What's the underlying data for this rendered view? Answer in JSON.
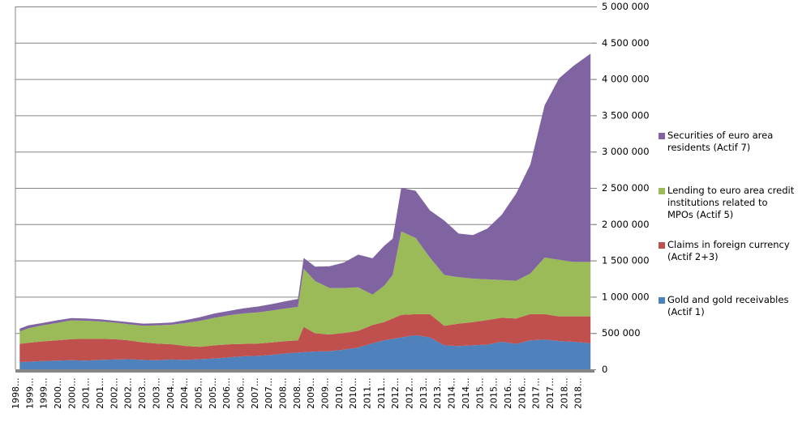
{
  "chart_data": {
    "type": "area",
    "stacked": true,
    "title": "",
    "xlabel": "",
    "ylabel": "",
    "ylim": [
      0,
      5000000
    ],
    "y_ticks": [
      0,
      500000,
      1000000,
      1500000,
      2000000,
      2500000,
      3000000,
      3500000,
      4000000,
      4500000,
      5000000
    ],
    "y_tick_labels": [
      "0",
      "500 000",
      "1 000 000",
      "1 500 000",
      "2 000 000",
      "2 500 000",
      "3 000 000",
      "3 500 000",
      "4 000 000",
      "4 500 000",
      "5 000 000"
    ],
    "y_axis_position": "right",
    "grid": true,
    "legend_position": "right",
    "x_tick_labels": [
      "1998...",
      "1999...",
      "1999...",
      "2000...",
      "2000...",
      "2001...",
      "2001...",
      "2002...",
      "2002...",
      "2003...",
      "2003...",
      "2004...",
      "2004...",
      "2005...",
      "2005...",
      "2006...",
      "2006...",
      "2007...",
      "2007...",
      "2008...",
      "2008...",
      "2009...",
      "2009...",
      "2010...",
      "2010...",
      "2011...",
      "2011...",
      "2012...",
      "2012...",
      "2013...",
      "2013...",
      "2014...",
      "2014...",
      "2015...",
      "2015...",
      "2016...",
      "2016...",
      "2017...",
      "2017...",
      "2018...",
      "2018..."
    ],
    "x": [
      1998.9,
      1999.2,
      1999.7,
      2000.2,
      2000.7,
      2001.2,
      2001.7,
      2002.2,
      2002.7,
      2003.2,
      2003.7,
      2004.2,
      2004.7,
      2005.2,
      2005.7,
      2006.2,
      2006.7,
      2007.2,
      2007.7,
      2008.2,
      2008.6,
      2008.8,
      2009.2,
      2009.7,
      2010.2,
      2010.7,
      2011.2,
      2011.6,
      2011.9,
      2012.2,
      2012.7,
      2013.2,
      2013.7,
      2014.2,
      2014.7,
      2015.2,
      2015.7,
      2016.2,
      2016.7,
      2017.2,
      2017.7,
      2018.2,
      2018.8
    ],
    "series": [
      {
        "name": "Gold and gold receivables (Actif 1)",
        "color": "#4F81BD",
        "values": [
          100000,
          105000,
          115000,
          120000,
          125000,
          120000,
          130000,
          135000,
          140000,
          130000,
          125000,
          135000,
          130000,
          140000,
          150000,
          165000,
          180000,
          185000,
          200000,
          220000,
          230000,
          235000,
          245000,
          250000,
          270000,
          300000,
          360000,
          400000,
          420000,
          440000,
          470000,
          440000,
          330000,
          320000,
          330000,
          340000,
          380000,
          350000,
          400000,
          410000,
          390000,
          380000,
          360000
        ]
      },
      {
        "name": "Claims in foreign currency (Actif 2+3)",
        "color": "#C0504D",
        "values": [
          250000,
          260000,
          270000,
          280000,
          290000,
          300000,
          290000,
          280000,
          260000,
          240000,
          230000,
          210000,
          190000,
          170000,
          180000,
          180000,
          170000,
          170000,
          170000,
          170000,
          170000,
          350000,
          250000,
          230000,
          230000,
          230000,
          250000,
          250000,
          280000,
          310000,
          290000,
          320000,
          270000,
          310000,
          320000,
          340000,
          330000,
          350000,
          360000,
          350000,
          340000,
          350000,
          370000
        ]
      },
      {
        "name": "Lending to euro area credit institutions related to MPOs (Actif 5)",
        "color": "#9BBB59",
        "values": [
          170000,
          200000,
          220000,
          240000,
          260000,
          250000,
          240000,
          230000,
          220000,
          230000,
          250000,
          270000,
          320000,
          360000,
          380000,
          400000,
          420000,
          430000,
          440000,
          450000,
          460000,
          800000,
          720000,
          640000,
          620000,
          600000,
          420000,
          500000,
          600000,
          1150000,
          1050000,
          780000,
          700000,
          640000,
          600000,
          560000,
          520000,
          520000,
          560000,
          780000,
          780000,
          750000,
          750000
        ]
      },
      {
        "name": "Securities of euro area residents (Actif 7)",
        "color": "#8064A2",
        "values": [
          40000,
          40000,
          35000,
          35000,
          30000,
          30000,
          30000,
          25000,
          30000,
          30000,
          30000,
          30000,
          40000,
          50000,
          60000,
          60000,
          70000,
          80000,
          90000,
          100000,
          110000,
          150000,
          200000,
          300000,
          350000,
          450000,
          500000,
          550000,
          500000,
          600000,
          650000,
          650000,
          750000,
          600000,
          600000,
          700000,
          900000,
          1200000,
          1500000,
          2100000,
          2500000,
          2700000,
          2870000
        ]
      }
    ]
  },
  "legend": {
    "items": [
      {
        "label": "Securities of euro area residents (Actif 7)",
        "color": "#8064A2"
      },
      {
        "label": "Lending to euro area credit institutions related to MPOs (Actif 5)",
        "color": "#9BBB59"
      },
      {
        "label": "Claims in foreign currency (Actif 2+3)",
        "color": "#C0504D"
      },
      {
        "label": "Gold and gold receivables (Actif 1)",
        "color": "#4F81BD"
      }
    ]
  }
}
